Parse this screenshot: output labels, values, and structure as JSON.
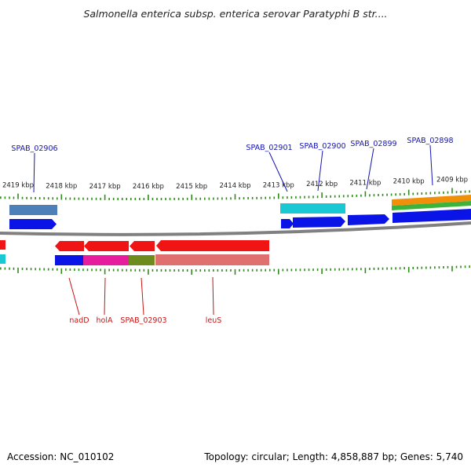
{
  "title": "Salmonella enterica subsp. enterica serovar Paratyphi B str....",
  "footer": {
    "accession": "Accession: NC_010102",
    "summary": "Topology: circular; Length: 4,858,887 bp; Genes: 5,740"
  },
  "colors": {
    "axis": "#808080",
    "tick": "#2e8b1a",
    "gene_label_top": "#1414b4",
    "gene_label_bottom": "#c81414",
    "cds_forward": "#0a14e6",
    "cds_reverse": "#f01414",
    "steelblue": "#4d7fb8",
    "cyan": "#19c8d2",
    "magenta": "#e61e9e",
    "olive": "#6e8c1e",
    "salmon": "#e07070",
    "orange": "#f0900a",
    "green": "#3cb43c"
  },
  "scale": {
    "ticks": [
      {
        "label": "2419 kbp",
        "kbp": 2419
      },
      {
        "label": "2418 kbp",
        "kbp": 2418
      },
      {
        "label": "2417 kbp",
        "kbp": 2417
      },
      {
        "label": "2416 kbp",
        "kbp": 2416
      },
      {
        "label": "2415 kbp",
        "kbp": 2415
      },
      {
        "label": "2414 kbp",
        "kbp": 2414
      },
      {
        "label": "2413 kbp",
        "kbp": 2413
      },
      {
        "label": "2412 kbp",
        "kbp": 2412
      },
      {
        "label": "2411 kbp",
        "kbp": 2411
      },
      {
        "label": "2410 kbp",
        "kbp": 2410
      },
      {
        "label": "2409 kbp",
        "kbp": 2409
      }
    ]
  },
  "genes_top": [
    {
      "name": "SPAB_02906"
    },
    {
      "name": "SPAB_02901"
    },
    {
      "name": "SPAB_02900"
    },
    {
      "name": "SPAB_02899"
    },
    {
      "name": "SPAB_02898"
    }
  ],
  "genes_bottom": [
    {
      "name": "nadD"
    },
    {
      "name": "holA"
    },
    {
      "name": "SPAB_02903"
    },
    {
      "name": "leuS"
    }
  ]
}
